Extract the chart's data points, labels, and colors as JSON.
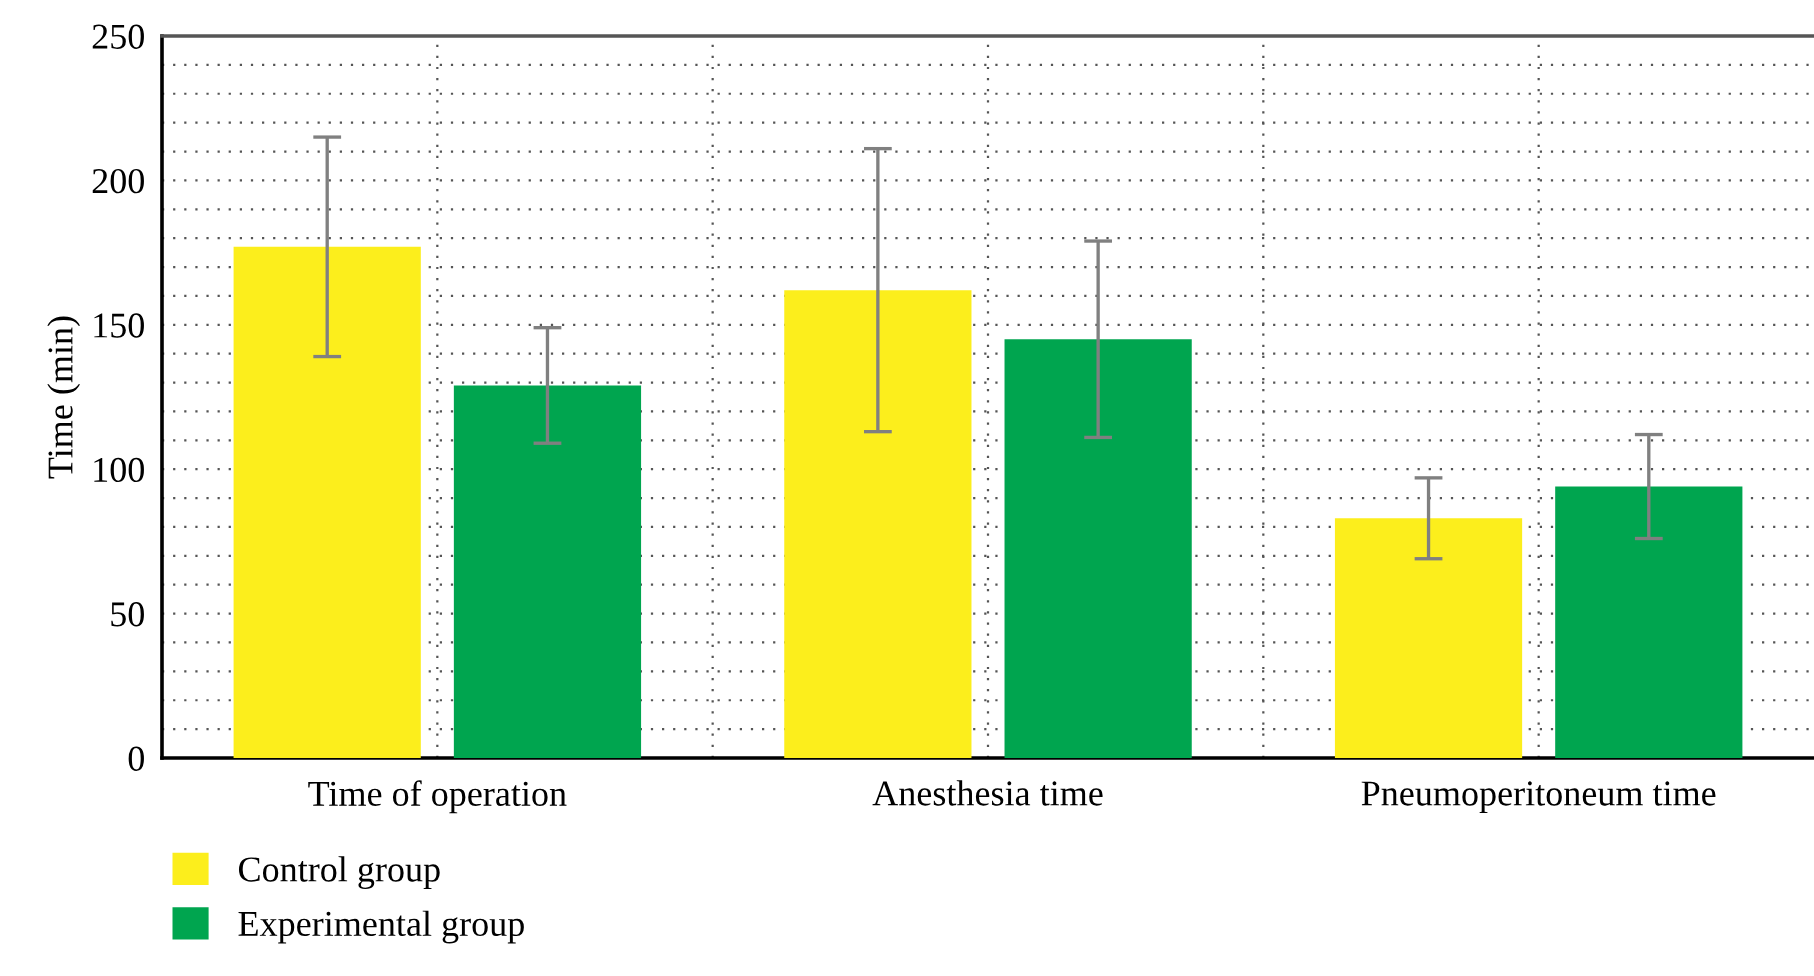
{
  "chart_data": {
    "type": "bar",
    "ylabel": "Time (min)",
    "categories": [
      "Time of operation",
      "Anesthesia time",
      "Pneumoperitoneum time"
    ],
    "series": [
      {
        "name": "Control group",
        "color": "#fcee1c",
        "values": [
          177,
          162,
          83
        ],
        "errors": [
          38,
          49,
          14
        ]
      },
      {
        "name": "Experimental group",
        "color": "#00a54f",
        "values": [
          129,
          145,
          94
        ],
        "errors": [
          20,
          34,
          18
        ]
      }
    ],
    "ylim": [
      0,
      250
    ],
    "yticks": [
      0,
      50,
      100,
      150,
      200,
      250
    ],
    "grid": true,
    "legend": "bottom left"
  }
}
